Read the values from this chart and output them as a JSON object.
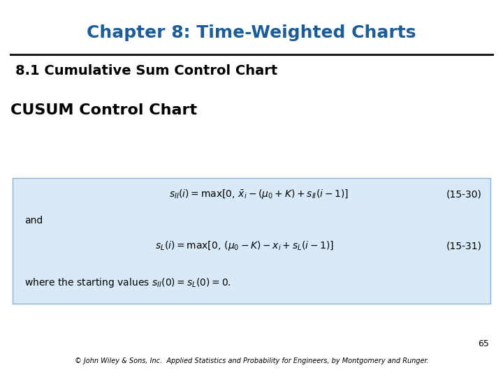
{
  "title": "Chapter 8: Time-Weighted Charts",
  "title_color": "#1B5C99",
  "subtitle": "8.1 Cumulative Sum Control Chart",
  "subtitle2": "CUSUM Control Chart",
  "box_bg": "#D8EAF7",
  "box_border": "#8AB4D0",
  "eq1": "$s_{II}(i) = \\mathrm{max}\\left[0,\\, \\bar{x}_i - (\\mu_0 + K) + s_{II}(i-1)\\right]$",
  "eq1_label": "(15-30)",
  "eq2": "$s_L(i) = \\mathrm{max}\\left[0,\\, (\\mu_0 - K) - x_i + s_L(i-1)\\right]$",
  "eq2_label": "(15-31)",
  "and_text": "and",
  "note_text": "where the starting values $s_{II}(0) = s_L(0) = 0.$",
  "page_number": "65",
  "footer": "© John Wiley & Sons, Inc.  Applied Statistics and Probability for Engineers, by Montgomery and Runger.",
  "background_color": "#FFFFFF"
}
